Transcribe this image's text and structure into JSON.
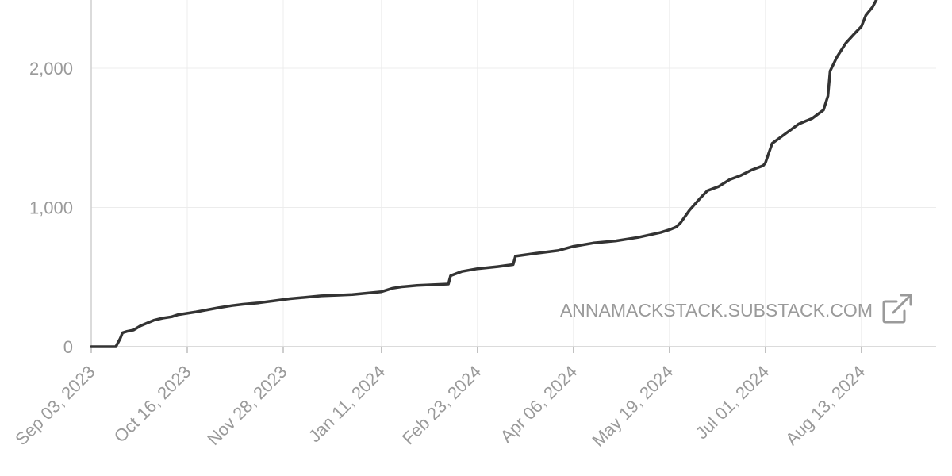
{
  "chart_data": {
    "type": "line",
    "title": "",
    "xlabel": "",
    "ylabel": "",
    "x_tick_labels": [
      "Sep 03, 2023",
      "Oct 16, 2023",
      "Nov 28, 2023",
      "Jan 11, 2024",
      "Feb 23, 2024",
      "Apr 06, 2024",
      "May 19, 2024",
      "Jul 01, 2024",
      "Aug 13, 2024"
    ],
    "y_tick_labels": [
      "0",
      "1,000",
      "2,000"
    ],
    "y_ticks": [
      0,
      1000,
      2000
    ],
    "xlim": [
      "2023-09-03",
      "2024-09-25"
    ],
    "ylim": [
      0,
      2500
    ],
    "grid": true,
    "legend": "none",
    "line_color": "#333333",
    "series": [
      {
        "x": [
          "2023-09-03",
          "2023-09-10",
          "2023-09-14",
          "2023-09-16",
          "2023-09-17",
          "2023-09-19",
          "2023-09-22",
          "2023-09-25",
          "2023-09-28",
          "2023-10-01",
          "2023-10-05",
          "2023-10-09",
          "2023-10-12",
          "2023-10-16",
          "2023-10-20",
          "2023-10-25",
          "2023-10-30",
          "2023-11-05",
          "2023-11-10",
          "2023-11-17",
          "2023-11-24",
          "2023-12-01",
          "2023-12-08",
          "2023-12-15",
          "2023-12-22",
          "2023-12-29",
          "2024-01-05",
          "2024-01-11",
          "2024-01-16",
          "2024-01-20",
          "2024-01-27",
          "2024-02-03",
          "2024-02-10",
          "2024-02-11",
          "2024-02-16",
          "2024-02-23",
          "2024-03-03",
          "2024-03-10",
          "2024-03-11",
          "2024-03-20",
          "2024-03-30",
          "2024-04-06",
          "2024-04-15",
          "2024-04-25",
          "2024-05-05",
          "2024-05-15",
          "2024-05-19",
          "2024-05-22",
          "2024-05-24",
          "2024-05-28",
          "2024-06-02",
          "2024-06-05",
          "2024-06-10",
          "2024-06-15",
          "2024-06-20",
          "2024-06-25",
          "2024-06-30",
          "2024-07-01",
          "2024-07-04",
          "2024-07-10",
          "2024-07-16",
          "2024-07-22",
          "2024-07-27",
          "2024-07-29",
          "2024-07-30",
          "2024-08-02",
          "2024-08-06",
          "2024-08-10",
          "2024-08-13",
          "2024-08-15",
          "2024-08-18",
          "2024-08-20"
        ],
        "values": [
          0,
          0,
          0,
          60,
          100,
          110,
          120,
          150,
          170,
          190,
          205,
          215,
          230,
          240,
          250,
          265,
          280,
          295,
          305,
          315,
          330,
          345,
          355,
          365,
          370,
          375,
          385,
          395,
          420,
          430,
          440,
          445,
          450,
          510,
          540,
          560,
          575,
          590,
          650,
          670,
          690,
          720,
          745,
          760,
          785,
          820,
          840,
          860,
          890,
          980,
          1070,
          1120,
          1150,
          1200,
          1230,
          1270,
          1300,
          1320,
          1460,
          1530,
          1600,
          1640,
          1700,
          1800,
          1980,
          2080,
          2180,
          2250,
          2300,
          2380,
          2440,
          2500
        ]
      }
    ]
  },
  "watermark": {
    "text": "ANNAMACKSTACK.SUBSTACK.COM",
    "icon": "external-link-icon"
  }
}
